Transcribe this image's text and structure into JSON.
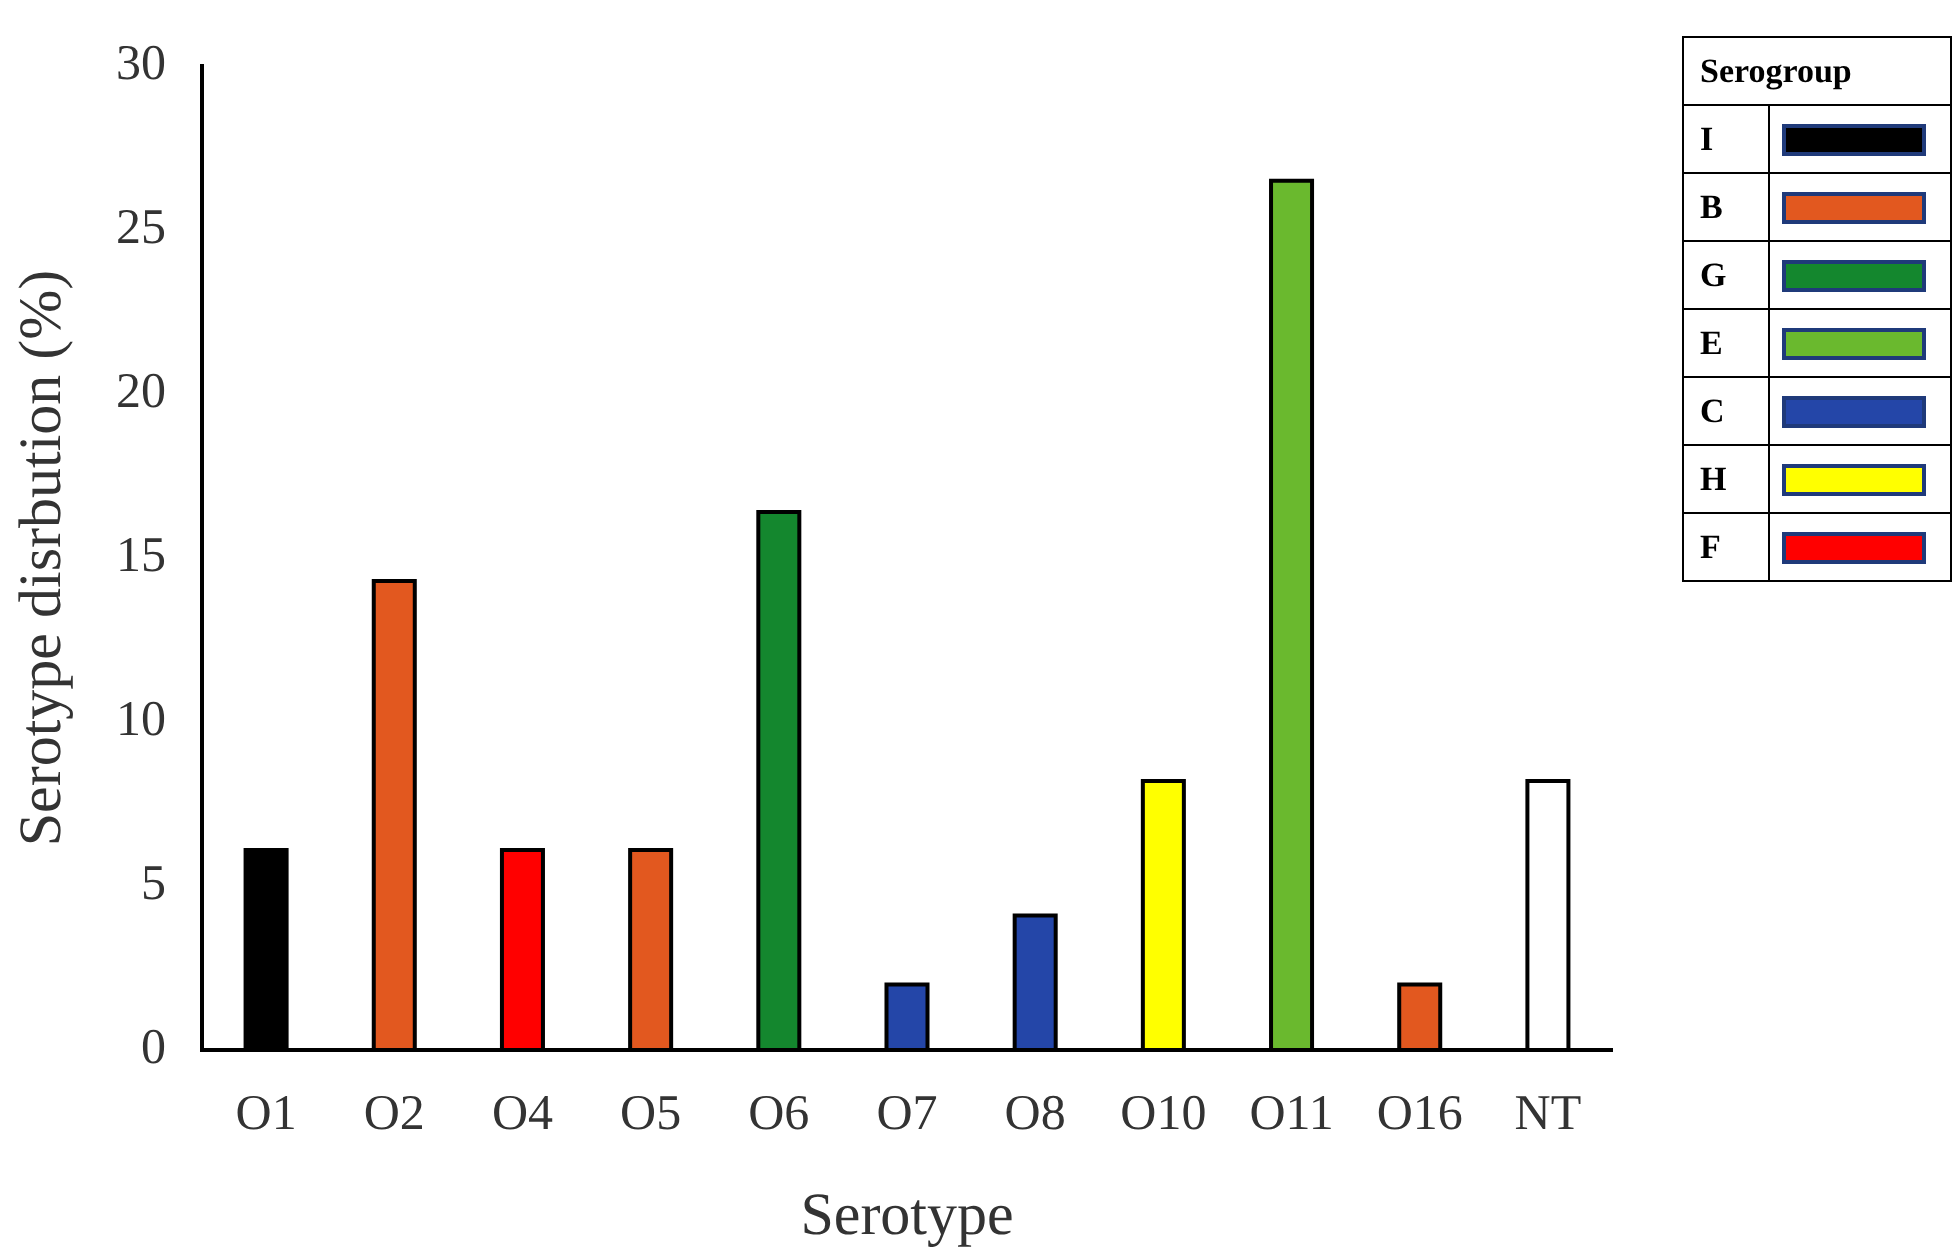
{
  "chart_data": {
    "type": "bar",
    "xlabel": "Serotype",
    "ylabel": "Serotype disrbution (%)",
    "legend_title": "Serogroup",
    "legend": "top right",
    "grid": false,
    "ylim": [
      0,
      30
    ],
    "yticks": [
      0,
      5,
      10,
      15,
      20,
      25,
      30
    ],
    "categories": [
      "O1",
      "O2",
      "O4",
      "O5",
      "O6",
      "O7",
      "O8",
      "O10",
      "O11",
      "O16",
      "NT"
    ],
    "series": [
      {
        "name": "I",
        "color": "#000000",
        "values": [
          6.1,
          null,
          null,
          null,
          null,
          null,
          null,
          null,
          null,
          null,
          null
        ]
      },
      {
        "name": "B",
        "color": "#e2581f",
        "values": [
          null,
          14.3,
          null,
          6.1,
          null,
          null,
          null,
          null,
          null,
          2.0,
          null
        ]
      },
      {
        "name": "G",
        "color": "#14872e",
        "values": [
          null,
          null,
          null,
          null,
          16.4,
          null,
          null,
          null,
          null,
          null,
          null
        ]
      },
      {
        "name": "E",
        "color": "#6ab92e",
        "values": [
          null,
          null,
          null,
          null,
          null,
          null,
          null,
          null,
          26.5,
          null,
          null
        ]
      },
      {
        "name": "C",
        "color": "#2446a8",
        "values": [
          null,
          null,
          null,
          null,
          null,
          2.0,
          4.1,
          null,
          null,
          null,
          null
        ]
      },
      {
        "name": "H",
        "color": "#ffff00",
        "values": [
          null,
          null,
          null,
          null,
          null,
          null,
          null,
          8.2,
          null,
          null,
          null
        ]
      },
      {
        "name": "F",
        "color": "#ff0000",
        "values": [
          null,
          null,
          6.1,
          null,
          null,
          null,
          null,
          null,
          null,
          null,
          null
        ]
      },
      {
        "color": "#ffffff",
        "values": [
          null,
          null,
          null,
          null,
          null,
          null,
          null,
          null,
          null,
          null,
          8.2
        ]
      }
    ]
  }
}
